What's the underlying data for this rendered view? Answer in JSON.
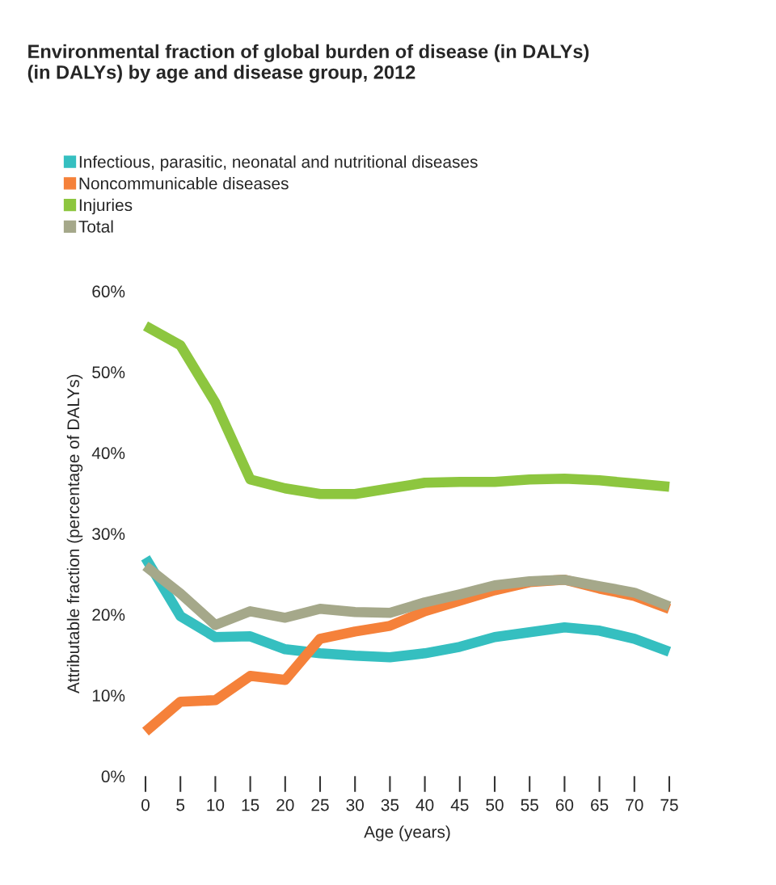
{
  "chart_data": {
    "type": "line",
    "title": "Environmental fraction of global burden of disease (in DALYs)\n(in DALYs) by age and disease group, 2012",
    "xlabel": "Age (years)",
    "ylabel": "Attributable fraction (percentage of DALYs)",
    "x": [
      0,
      5,
      10,
      15,
      20,
      25,
      30,
      35,
      40,
      45,
      50,
      55,
      60,
      65,
      70,
      75
    ],
    "series": [
      {
        "name": "Infectious, parasitic, neonatal and nutritional diseases",
        "color": "#35bfc0",
        "values": [
          27.0,
          19.8,
          17.2,
          17.3,
          15.7,
          15.2,
          14.9,
          14.7,
          15.2,
          16.0,
          17.2,
          17.8,
          18.4,
          18.0,
          17.0,
          15.4
        ]
      },
      {
        "name": "Noncommunicable diseases",
        "color": "#f5813a",
        "values": [
          5.5,
          9.2,
          9.4,
          12.4,
          11.9,
          17.0,
          17.9,
          18.6,
          20.4,
          21.7,
          23.0,
          24.0,
          24.3,
          23.2,
          22.3,
          20.7
        ]
      },
      {
        "name": "Injuries",
        "color": "#8dc63f",
        "values": [
          55.7,
          53.3,
          46.2,
          36.7,
          35.6,
          34.9,
          34.9,
          35.6,
          36.3,
          36.4,
          36.4,
          36.7,
          36.8,
          36.6,
          36.2,
          35.8
        ]
      },
      {
        "name": "Total",
        "color": "#a5a88a",
        "values": [
          26.0,
          22.6,
          18.7,
          20.4,
          19.6,
          20.7,
          20.3,
          20.2,
          21.5,
          22.5,
          23.6,
          24.1,
          24.3,
          23.5,
          22.7,
          21.0
        ]
      }
    ],
    "xlim": [
      0,
      75
    ],
    "xticks": [
      0,
      5,
      10,
      15,
      20,
      25,
      30,
      35,
      40,
      45,
      50,
      55,
      60,
      65,
      70,
      75
    ],
    "ylim": [
      0,
      60
    ],
    "yticks": [
      {
        "value": 0,
        "label": "0%"
      },
      {
        "value": 10,
        "label": "10%"
      },
      {
        "value": 20,
        "label": "20%"
      },
      {
        "value": 30,
        "label": "30%"
      },
      {
        "value": 40,
        "label": "40%"
      },
      {
        "value": 50,
        "label": "50%"
      },
      {
        "value": 60,
        "label": "60%"
      }
    ],
    "grid": false,
    "legend": "top left",
    "line_style": "solid",
    "marker": "none"
  }
}
